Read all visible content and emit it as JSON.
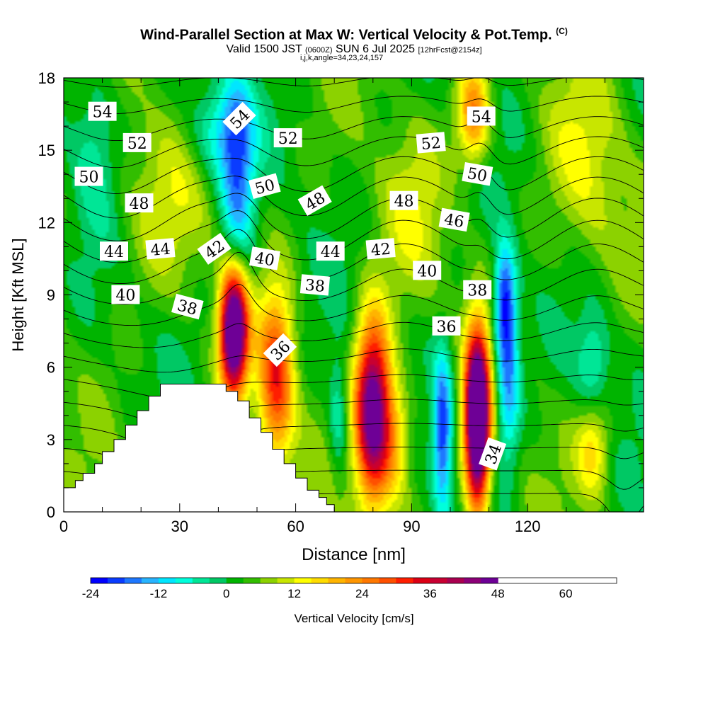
{
  "title": {
    "main": "Wind-Parallel Section at Max W: Vertical Velocity & Pot.Temp.",
    "copyright": "(C)",
    "valid_prefix": "Valid 1500 JST",
    "utc": "(0600Z)",
    "valid_date": "SUN 6 Jul 2025",
    "forecast": "[12hrFcst@2154z]",
    "indices": "i,j,k,angle=34,23,24,157"
  },
  "chart_data": {
    "type": "heatmap",
    "xlabel": "Distance [nm]",
    "ylabel": "Height [Kft MSL]",
    "xlim": [
      0,
      150
    ],
    "ylim": [
      0,
      18
    ],
    "x_ticks": [
      "0",
      "30",
      "60",
      "90",
      "120"
    ],
    "x_tick_values": [
      0,
      30,
      60,
      90,
      120
    ],
    "y_ticks": [
      "0",
      "3",
      "6",
      "9",
      "12",
      "15",
      "18"
    ],
    "y_tick_values": [
      0,
      3,
      6,
      9,
      12,
      15,
      18
    ],
    "colorbar": {
      "label": "Vertical Velocity [cm/s]",
      "min": -24,
      "max": 69,
      "step": 3,
      "tick_labels": [
        "-24",
        "-12",
        "0",
        "12",
        "24",
        "36",
        "48",
        "60"
      ],
      "tick_values": [
        -24,
        -12,
        0,
        12,
        24,
        36,
        48,
        60
      ],
      "colors": [
        "#0000ff",
        "#0a3cff",
        "#1e78ff",
        "#28b4ff",
        "#00e6ff",
        "#00ffdc",
        "#00e696",
        "#00c864",
        "#00b400",
        "#32be00",
        "#8cd200",
        "#c8e600",
        "#ffff00",
        "#ffdc00",
        "#ffb400",
        "#ff9600",
        "#ff7800",
        "#ff5000",
        "#ff1e00",
        "#dc0014",
        "#c80032",
        "#aa0050",
        "#8c0078",
        "#6e0096"
      ]
    },
    "terrain": [
      [
        0,
        1.0
      ],
      [
        3,
        1.0
      ],
      [
        3,
        1.3
      ],
      [
        5,
        1.3
      ],
      [
        5,
        1.6
      ],
      [
        8,
        1.6
      ],
      [
        8,
        2.0
      ],
      [
        10,
        2.0
      ],
      [
        10,
        2.5
      ],
      [
        13,
        2.5
      ],
      [
        13,
        3.0
      ],
      [
        16,
        3.0
      ],
      [
        16,
        3.6
      ],
      [
        19,
        3.6
      ],
      [
        19,
        4.2
      ],
      [
        22,
        4.2
      ],
      [
        22,
        4.8
      ],
      [
        25,
        4.8
      ],
      [
        25,
        5.3
      ],
      [
        42,
        5.3
      ],
      [
        42,
        5.0
      ],
      [
        45,
        5.0
      ],
      [
        45,
        4.6
      ],
      [
        48,
        4.6
      ],
      [
        48,
        3.9
      ],
      [
        51,
        3.9
      ],
      [
        51,
        3.3
      ],
      [
        54,
        3.3
      ],
      [
        54,
        2.6
      ],
      [
        57,
        2.6
      ],
      [
        57,
        2.0
      ],
      [
        60,
        2.0
      ],
      [
        60,
        1.4
      ],
      [
        63,
        1.4
      ],
      [
        63,
        0.9
      ],
      [
        66,
        0.9
      ],
      [
        66,
        0.6
      ],
      [
        68,
        0.6
      ],
      [
        68,
        0.3
      ],
      [
        70,
        0.3
      ],
      [
        70,
        0
      ]
    ],
    "velocity_cells": [
      {
        "x": 44,
        "y": 7.5,
        "sx": 2.5,
        "sy": 1.8,
        "w": 58
      },
      {
        "x": 55,
        "y": 5.5,
        "sx": 3.2,
        "sy": 2.5,
        "w": 28
      },
      {
        "x": 80,
        "y": 4.2,
        "sx": 3.2,
        "sy": 2.6,
        "w": 50
      },
      {
        "x": 86,
        "y": 3.0,
        "sx": 3,
        "sy": 1.8,
        "w": 15
      },
      {
        "x": 107,
        "y": 3.8,
        "sx": 2.2,
        "sy": 2.5,
        "w": 66
      },
      {
        "x": 71,
        "y": 4.0,
        "sx": 1.8,
        "sy": 1.8,
        "w": -10
      },
      {
        "x": 98,
        "y": 3.4,
        "sx": 1.8,
        "sy": 2.3,
        "w": -24
      },
      {
        "x": 115,
        "y": 5.5,
        "sx": 2.2,
        "sy": 2.5,
        "w": -18
      },
      {
        "x": 114,
        "y": 8.8,
        "sx": 2,
        "sy": 1.6,
        "w": -22
      },
      {
        "x": 45,
        "y": 13.8,
        "sx": 3,
        "sy": 3.0,
        "w": -18
      },
      {
        "x": 40,
        "y": 15.8,
        "sx": 5,
        "sy": 1.4,
        "w": -12
      },
      {
        "x": 8,
        "y": 15.5,
        "sx": 4,
        "sy": 2.5,
        "w": -8
      },
      {
        "x": 137,
        "y": 6.0,
        "sx": 3,
        "sy": 1.6,
        "w": -10
      },
      {
        "x": 137,
        "y": 2.7,
        "sx": 3,
        "sy": 1.5,
        "w": 14
      },
      {
        "x": 106,
        "y": 16.5,
        "sx": 3,
        "sy": 1.5,
        "w": 22
      },
      {
        "x": 135,
        "y": 14.0,
        "sx": 7,
        "sy": 3,
        "w": 8
      },
      {
        "x": 25,
        "y": 12.5,
        "sx": 8,
        "sy": 2.5,
        "w": 6
      },
      {
        "x": 90,
        "y": 12.5,
        "sx": 6,
        "sy": 2.5,
        "w": 6
      }
    ],
    "isentropes_kelvin_offset": {
      "levels": [
        34,
        35,
        36,
        37,
        38,
        39,
        40,
        41,
        42,
        43,
        44,
        45,
        46,
        47,
        48,
        49,
        50,
        51,
        52,
        53,
        54,
        55
      ]
    },
    "contour_labels": [
      {
        "text": "54",
        "x": 10,
        "y": 16.6,
        "rot": 0
      },
      {
        "text": "52",
        "x": 19,
        "y": 15.3,
        "rot": 0
      },
      {
        "text": "50",
        "x": 6.5,
        "y": 13.9,
        "rot": 0
      },
      {
        "text": "48",
        "x": 19.5,
        "y": 12.8,
        "rot": 0
      },
      {
        "text": "44",
        "x": 13,
        "y": 10.8,
        "rot": 0
      },
      {
        "text": "44",
        "x": 25,
        "y": 10.9,
        "rot": -5
      },
      {
        "text": "42",
        "x": 39,
        "y": 10.9,
        "rot": -35
      },
      {
        "text": "40",
        "x": 16,
        "y": 9.0,
        "rot": 0
      },
      {
        "text": "38",
        "x": 32,
        "y": 8.5,
        "rot": 15
      },
      {
        "text": "54",
        "x": 45.5,
        "y": 16.3,
        "rot": -45
      },
      {
        "text": "52",
        "x": 58,
        "y": 15.5,
        "rot": 0
      },
      {
        "text": "50",
        "x": 52,
        "y": 13.5,
        "rot": -15
      },
      {
        "text": "48",
        "x": 65,
        "y": 12.9,
        "rot": -30
      },
      {
        "text": "40",
        "x": 52,
        "y": 10.5,
        "rot": 10
      },
      {
        "text": "44",
        "x": 69,
        "y": 10.8,
        "rot": 0
      },
      {
        "text": "38",
        "x": 65,
        "y": 9.4,
        "rot": 5
      },
      {
        "text": "36",
        "x": 56,
        "y": 6.7,
        "rot": -45
      },
      {
        "text": "42",
        "x": 82,
        "y": 10.9,
        "rot": -5
      },
      {
        "text": "48",
        "x": 88,
        "y": 12.9,
        "rot": 0
      },
      {
        "text": "52",
        "x": 95,
        "y": 15.3,
        "rot": -5
      },
      {
        "text": "40",
        "x": 94,
        "y": 10.0,
        "rot": 0
      },
      {
        "text": "46",
        "x": 101,
        "y": 12.1,
        "rot": 10
      },
      {
        "text": "36",
        "x": 99,
        "y": 7.7,
        "rot": 0
      },
      {
        "text": "54",
        "x": 108,
        "y": 16.4,
        "rot": 0
      },
      {
        "text": "50",
        "x": 107,
        "y": 14.0,
        "rot": 10
      },
      {
        "text": "38",
        "x": 107,
        "y": 9.2,
        "rot": 0
      },
      {
        "text": "34",
        "x": 111,
        "y": 2.4,
        "rot": -70
      }
    ]
  }
}
